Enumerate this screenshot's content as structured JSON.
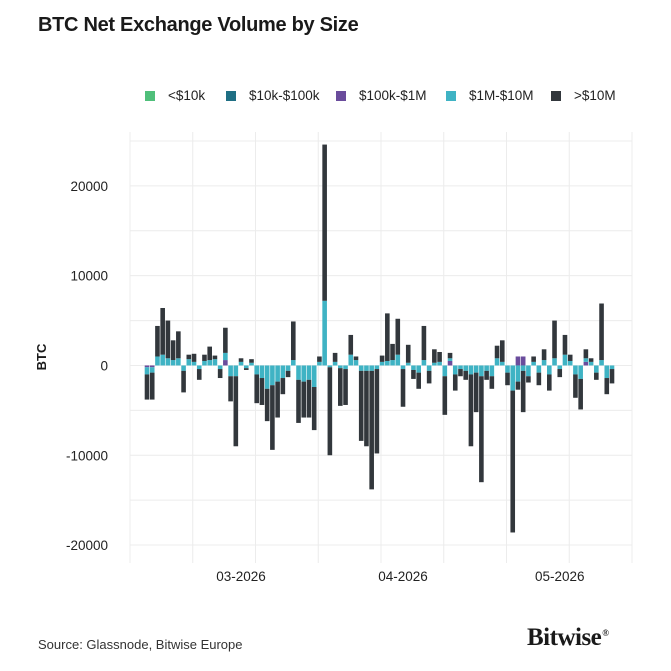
{
  "header": {
    "title": "BTC Net Exchange Volume by Size"
  },
  "legend": [
    {
      "label": "<$10k",
      "color": "#4fbf7a"
    },
    {
      "label": "$10k-$100k",
      "color": "#1f6f84"
    },
    {
      "label": "$100k-$1M",
      "color": "#6a4c9c"
    },
    {
      "label": "$1M-$10M",
      "color": "#3fb3c4"
    },
    {
      "label": ">$10M",
      "color": "#32373c"
    }
  ],
  "footer": {
    "source": "Source: Glassnode, Bitwise Europe",
    "logo": "Bitwise",
    "logo_mark": "®"
  },
  "chart_data": {
    "type": "bar",
    "stacked": true,
    "title": "BTC Net Exchange Volume by Size",
    "xlabel": "",
    "ylabel": "BTC",
    "ylim": [
      -22000,
      26000
    ],
    "yticks": [
      20000,
      10000,
      0,
      -10000,
      -20000
    ],
    "ytick_labels": [
      "20000",
      "10000",
      "0",
      "-10000",
      "-20000"
    ],
    "xticks": [
      {
        "label": "03-2026",
        "index": 18
      },
      {
        "label": "04-2026",
        "index": 49
      },
      {
        "label": "05-2026",
        "index": 79
      }
    ],
    "grid": true,
    "legend_position": "top",
    "series_names": [
      "<$10k",
      "$10k-$100k",
      "$100k-$1M",
      "$1M-$10M",
      ">$10M"
    ],
    "series_colors": [
      "#4fbf7a",
      "#1f6f84",
      "#6a4c9c",
      "#3fb3c4",
      "#32373c"
    ],
    "values": [
      [
        0,
        0,
        -200,
        -800,
        -2800
      ],
      [
        0,
        0,
        -200,
        -600,
        -3000
      ],
      [
        0,
        0,
        0,
        1000,
        3400
      ],
      [
        0,
        0,
        0,
        1200,
        5200
      ],
      [
        0,
        0,
        0,
        800,
        4200
      ],
      [
        0,
        0,
        0,
        600,
        2200
      ],
      [
        0,
        0,
        0,
        800,
        3000
      ],
      [
        0,
        0,
        0,
        -600,
        -2400
      ],
      [
        0,
        0,
        0,
        700,
        500
      ],
      [
        0,
        0,
        0,
        400,
        900
      ],
      [
        0,
        0,
        0,
        -400,
        -1200
      ],
      [
        0,
        0,
        0,
        500,
        700
      ],
      [
        0,
        0,
        0,
        600,
        1500
      ],
      [
        0,
        0,
        0,
        700,
        400
      ],
      [
        0,
        0,
        0,
        -400,
        -1000
      ],
      [
        0,
        0,
        600,
        800,
        2800
      ],
      [
        0,
        0,
        0,
        -1200,
        -2800
      ],
      [
        0,
        0,
        0,
        -1200,
        -7800
      ],
      [
        0,
        0,
        0,
        400,
        400
      ],
      [
        0,
        0,
        0,
        -300,
        -200
      ],
      [
        0,
        0,
        0,
        300,
        400
      ],
      [
        0,
        0,
        0,
        -1000,
        -3200
      ],
      [
        0,
        0,
        0,
        -1400,
        -3000
      ],
      [
        0,
        0,
        0,
        -2600,
        -3600
      ],
      [
        0,
        0,
        0,
        -2200,
        -7200
      ],
      [
        0,
        0,
        0,
        -1800,
        -4000
      ],
      [
        0,
        0,
        0,
        -1400,
        -1800
      ],
      [
        0,
        0,
        0,
        -600,
        -700
      ],
      [
        0,
        0,
        0,
        600,
        4300
      ],
      [
        0,
        0,
        0,
        -1600,
        -4800
      ],
      [
        0,
        0,
        0,
        -1800,
        -4000
      ],
      [
        0,
        0,
        0,
        -1600,
        -4200
      ],
      [
        0,
        0,
        0,
        -2400,
        -4800
      ],
      [
        0,
        0,
        0,
        400,
        600
      ],
      [
        0,
        0,
        0,
        7200,
        17400
      ],
      [
        0,
        0,
        0,
        -200,
        -9800
      ],
      [
        0,
        0,
        0,
        400,
        1000
      ],
      [
        0,
        0,
        0,
        -300,
        -4200
      ],
      [
        0,
        0,
        0,
        -400,
        -4000
      ],
      [
        0,
        0,
        0,
        1200,
        2200
      ],
      [
        0,
        0,
        0,
        600,
        400
      ],
      [
        0,
        0,
        0,
        -600,
        -7800
      ],
      [
        0,
        0,
        0,
        -600,
        -8400
      ],
      [
        0,
        0,
        0,
        -600,
        -13200
      ],
      [
        0,
        0,
        0,
        -400,
        -9400
      ],
      [
        0,
        0,
        0,
        400,
        700
      ],
      [
        0,
        0,
        0,
        500,
        5300
      ],
      [
        0,
        0,
        0,
        600,
        1800
      ],
      [
        0,
        0,
        0,
        1200,
        4000
      ],
      [
        0,
        0,
        0,
        -400,
        -4200
      ],
      [
        0,
        0,
        0,
        300,
        2000
      ],
      [
        0,
        0,
        0,
        -500,
        -1000
      ],
      [
        0,
        0,
        0,
        -800,
        -1800
      ],
      [
        0,
        0,
        0,
        600,
        3800
      ],
      [
        0,
        0,
        0,
        -600,
        -1400
      ],
      [
        0,
        0,
        0,
        300,
        1500
      ],
      [
        0,
        0,
        0,
        400,
        1100
      ],
      [
        0,
        0,
        0,
        -1200,
        -4300
      ],
      [
        0,
        0,
        500,
        300,
        600
      ],
      [
        0,
        0,
        0,
        -1000,
        -1800
      ],
      [
        0,
        0,
        0,
        -400,
        -800
      ],
      [
        0,
        0,
        0,
        -600,
        -1000
      ],
      [
        0,
        0,
        0,
        -1000,
        -8000
      ],
      [
        0,
        0,
        0,
        -800,
        -4400
      ],
      [
        0,
        0,
        0,
        -1200,
        -11800
      ],
      [
        0,
        0,
        0,
        -600,
        -1000
      ],
      [
        0,
        0,
        0,
        -1200,
        -1400
      ],
      [
        0,
        0,
        0,
        800,
        1400
      ],
      [
        0,
        0,
        0,
        400,
        2400
      ],
      [
        0,
        0,
        0,
        -800,
        -1400
      ],
      [
        0,
        0,
        0,
        -2800,
        -15800
      ],
      [
        0,
        0,
        1000,
        -1800,
        -900
      ],
      [
        0,
        0,
        1000,
        -600,
        -4600
      ],
      [
        0,
        0,
        0,
        -1200,
        -700
      ],
      [
        0,
        0,
        0,
        400,
        600
      ],
      [
        0,
        0,
        0,
        -800,
        -1400
      ],
      [
        0,
        0,
        0,
        600,
        1200
      ],
      [
        0,
        0,
        0,
        -1000,
        -1800
      ],
      [
        0,
        0,
        0,
        800,
        4200
      ],
      [
        0,
        0,
        0,
        -400,
        -900
      ],
      [
        0,
        0,
        0,
        1200,
        2200
      ],
      [
        0,
        0,
        0,
        500,
        700
      ],
      [
        0,
        0,
        0,
        -1000,
        -2600
      ],
      [
        0,
        0,
        0,
        -1500,
        -3400
      ],
      [
        0,
        0,
        400,
        400,
        1000
      ],
      [
        0,
        0,
        0,
        400,
        400
      ],
      [
        0,
        0,
        0,
        -800,
        -800
      ],
      [
        0,
        0,
        0,
        600,
        6300
      ],
      [
        0,
        0,
        0,
        -1400,
        -1800
      ],
      [
        0,
        0,
        0,
        -400,
        -1600
      ]
    ]
  }
}
